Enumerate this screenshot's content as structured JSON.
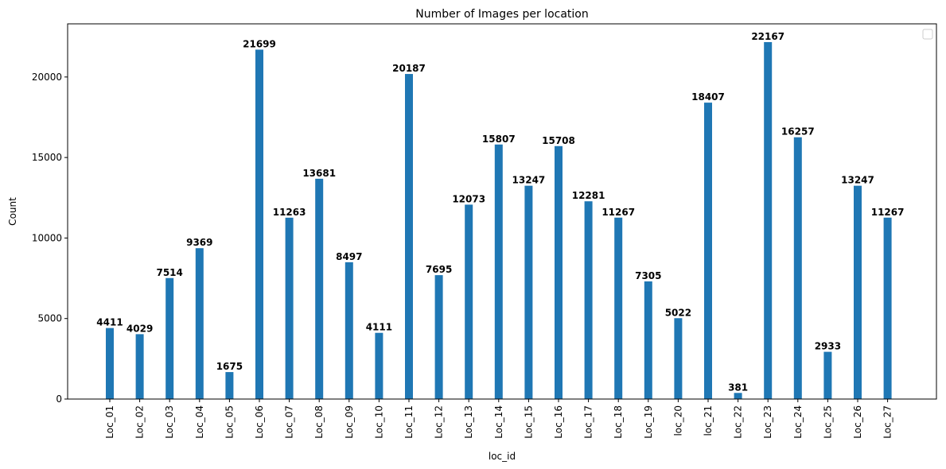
{
  "chart_data": {
    "type": "bar",
    "title": "Number of Images per location",
    "xlabel": "loc_id",
    "ylabel": "Count",
    "categories": [
      "Loc_01",
      "Loc_02",
      "Loc_03",
      "Loc_04",
      "Loc_05",
      "Loc_06",
      "Loc_07",
      "Loc_08",
      "Loc_09",
      "Loc_10",
      "Loc_11",
      "Loc_12",
      "Loc_13",
      "Loc_14",
      "Loc_15",
      "Loc_16",
      "Loc_17",
      "Loc_18",
      "Loc_19",
      "loc_20",
      "loc_21",
      "Loc_22",
      "Loc_23",
      "Loc_24",
      "Loc_25",
      "Loc_26",
      "Loc_27"
    ],
    "values": [
      4411,
      4029,
      7514,
      9369,
      1675,
      21699,
      11263,
      13681,
      8497,
      4111,
      20187,
      7695,
      12073,
      15807,
      13247,
      15708,
      12281,
      11267,
      7305,
      5022,
      18407,
      381,
      22167,
      16257,
      2933,
      13247,
      11267
    ],
    "value_labels": [
      "4411",
      "4029",
      "7514",
      "9369",
      "1675",
      "21699",
      "11263",
      "13681",
      "8497",
      "4111",
      "20187",
      "7695",
      "12073",
      "15807",
      "13247",
      "15708",
      "12281",
      "11267",
      "7305",
      "5022",
      "18407",
      "381",
      "22167",
      "16257",
      "2933",
      "13247",
      "11267"
    ],
    "yticks": [
      0,
      5000,
      10000,
      15000,
      20000
    ],
    "ytick_labels": [
      "0",
      "5000",
      "10000",
      "15000",
      "20000"
    ],
    "ylim": [
      0,
      23300
    ],
    "grid": false,
    "legend": "top-right (empty)",
    "bar_color": "#1f77b4"
  }
}
